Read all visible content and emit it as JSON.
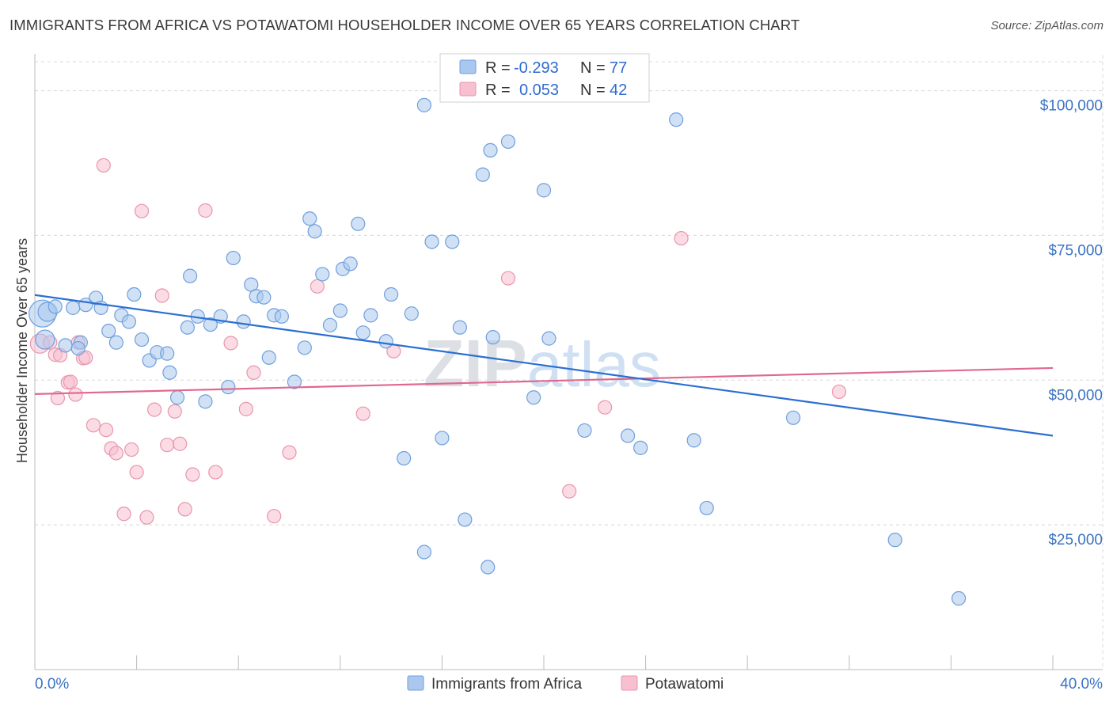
{
  "title": "IMMIGRANTS FROM AFRICA VS POTAWATOMI HOUSEHOLDER INCOME OVER 65 YEARS CORRELATION CHART",
  "source": "Source: ZipAtlas.com",
  "watermark": "ZIPatlas",
  "colors": {
    "blue_fill": "#aac8ef",
    "blue_stroke": "#6f9fdc",
    "blue_line": "#2a6fd1",
    "pink_fill": "#f7bfd0",
    "pink_stroke": "#e895ae",
    "pink_line": "#e06890",
    "tick_text": "#3b73c4",
    "grid": "#d8d8d8"
  },
  "legend": {
    "r_label": "R =",
    "n_label": "N =",
    "entries": [
      {
        "name": "Immigrants from Africa",
        "r": "-0.293",
        "n": "77"
      },
      {
        "name": "Potawatomi",
        "r": "0.053",
        "n": "42"
      }
    ]
  },
  "chart_data": {
    "type": "scatter",
    "title": "IMMIGRANTS FROM AFRICA VS POTAWATOMI HOUSEHOLDER INCOME OVER 65 YEARS CORRELATION CHART",
    "xlabel": "",
    "ylabel": "Householder Income Over 65 years",
    "xlim": [
      0,
      40
    ],
    "ylim": [
      0,
      105000
    ],
    "x_tick_labels": [
      {
        "value": 0,
        "label": "0.0%"
      },
      {
        "value": 40,
        "label": "40.0%"
      }
    ],
    "y_ticks": [
      {
        "value": 25000,
        "label": "$25,000"
      },
      {
        "value": 50000,
        "label": "$50,000"
      },
      {
        "value": 75000,
        "label": "$75,000"
      },
      {
        "value": 100000,
        "label": "$100,000"
      }
    ],
    "series": [
      {
        "name": "Immigrants from Africa",
        "trend": {
          "x": [
            0,
            40
          ],
          "y": [
            64700,
            40400
          ]
        },
        "points": [
          [
            0.3,
            61500,
            3
          ],
          [
            0.5,
            61800,
            2
          ],
          [
            0.8,
            62700,
            1
          ],
          [
            1.5,
            62500,
            1
          ],
          [
            1.8,
            56500,
            1
          ],
          [
            1.7,
            55500,
            1
          ],
          [
            2.4,
            64200,
            1
          ],
          [
            2.6,
            62500,
            1
          ],
          [
            2.9,
            58500,
            1
          ],
          [
            3.2,
            56500,
            1
          ],
          [
            3.4,
            61200,
            1
          ],
          [
            3.7,
            60100,
            1
          ],
          [
            3.9,
            64800,
            1
          ],
          [
            4.2,
            57000,
            1
          ],
          [
            4.5,
            53400,
            1
          ],
          [
            4.8,
            54800,
            1
          ],
          [
            5.2,
            54600,
            1
          ],
          [
            5.3,
            51300,
            1
          ],
          [
            5.6,
            47000,
            1
          ],
          [
            6.0,
            59100,
            1
          ],
          [
            6.1,
            68000,
            1
          ],
          [
            6.4,
            61000,
            1
          ],
          [
            6.7,
            46300,
            1
          ],
          [
            6.9,
            59600,
            1
          ],
          [
            7.3,
            61000,
            1
          ],
          [
            7.6,
            48800,
            1
          ],
          [
            7.8,
            71100,
            1
          ],
          [
            8.2,
            60100,
            1
          ],
          [
            8.5,
            66500,
            1
          ],
          [
            8.7,
            64500,
            1
          ],
          [
            9.0,
            64300,
            1
          ],
          [
            9.2,
            53900,
            1
          ],
          [
            9.4,
            61200,
            1
          ],
          [
            9.7,
            61000,
            1
          ],
          [
            10.2,
            49700,
            1
          ],
          [
            10.6,
            55600,
            1
          ],
          [
            10.8,
            77900,
            1
          ],
          [
            11.0,
            75700,
            1
          ],
          [
            11.3,
            68300,
            1
          ],
          [
            11.6,
            59500,
            1
          ],
          [
            12.0,
            62000,
            1
          ],
          [
            12.1,
            69200,
            1
          ],
          [
            12.4,
            70100,
            1
          ],
          [
            12.7,
            77000,
            1
          ],
          [
            12.9,
            58200,
            1
          ],
          [
            13.2,
            61200,
            1
          ],
          [
            13.8,
            56700,
            1
          ],
          [
            14.0,
            64800,
            1
          ],
          [
            14.5,
            36500,
            1
          ],
          [
            14.8,
            61500,
            1
          ],
          [
            15.3,
            97500,
            1
          ],
          [
            15.6,
            73900,
            1
          ],
          [
            15.3,
            20300,
            1
          ],
          [
            16.0,
            40000,
            1
          ],
          [
            16.4,
            73900,
            1
          ],
          [
            16.7,
            59100,
            1
          ],
          [
            16.9,
            25900,
            1
          ],
          [
            17.6,
            85500,
            1
          ],
          [
            17.9,
            89700,
            1
          ],
          [
            17.8,
            17700,
            1
          ],
          [
            18.0,
            57400,
            1
          ],
          [
            18.6,
            91200,
            1
          ],
          [
            19.6,
            47000,
            1
          ],
          [
            20.0,
            82800,
            1
          ],
          [
            20.2,
            57200,
            1
          ],
          [
            21.6,
            41300,
            1
          ],
          [
            23.3,
            40400,
            1
          ],
          [
            23.8,
            38300,
            1
          ],
          [
            25.2,
            95000,
            1
          ],
          [
            25.9,
            39600,
            1
          ],
          [
            26.4,
            27900,
            1
          ],
          [
            29.8,
            43500,
            1
          ],
          [
            33.8,
            22400,
            1
          ],
          [
            36.3,
            12300,
            1
          ],
          [
            0.4,
            57000,
            2
          ],
          [
            1.2,
            56000,
            1
          ],
          [
            2.0,
            63000,
            1
          ]
        ]
      },
      {
        "name": "Potawatomi",
        "trend": {
          "x": [
            0,
            40
          ],
          "y": [
            47600,
            52100
          ]
        },
        "points": [
          [
            0.2,
            56300,
            2
          ],
          [
            0.6,
            56500,
            1
          ],
          [
            0.8,
            54400,
            1
          ],
          [
            0.9,
            46900,
            1
          ],
          [
            1.0,
            54300,
            1
          ],
          [
            1.3,
            49600,
            1
          ],
          [
            1.4,
            49700,
            1
          ],
          [
            1.6,
            47500,
            1
          ],
          [
            1.7,
            56500,
            1
          ],
          [
            1.9,
            53800,
            1
          ],
          [
            2.0,
            53900,
            1
          ],
          [
            2.3,
            42200,
            1
          ],
          [
            2.7,
            87100,
            1
          ],
          [
            2.8,
            41400,
            1
          ],
          [
            3.0,
            38200,
            1
          ],
          [
            3.2,
            37400,
            1
          ],
          [
            3.5,
            26900,
            1
          ],
          [
            3.8,
            38000,
            1
          ],
          [
            4.0,
            34100,
            1
          ],
          [
            4.2,
            79200,
            1
          ],
          [
            4.4,
            26300,
            1
          ],
          [
            4.7,
            44900,
            1
          ],
          [
            5.0,
            64600,
            1
          ],
          [
            5.2,
            38800,
            1
          ],
          [
            5.5,
            44600,
            1
          ],
          [
            5.7,
            39000,
            1
          ],
          [
            5.9,
            27700,
            1
          ],
          [
            6.2,
            33700,
            1
          ],
          [
            6.7,
            79300,
            1
          ],
          [
            7.1,
            34100,
            1
          ],
          [
            7.7,
            56400,
            1
          ],
          [
            8.3,
            45000,
            1
          ],
          [
            8.6,
            51300,
            1
          ],
          [
            9.4,
            26500,
            1
          ],
          [
            10.0,
            37500,
            1
          ],
          [
            11.1,
            66200,
            1
          ],
          [
            12.9,
            44200,
            1
          ],
          [
            14.1,
            55000,
            1
          ],
          [
            18.6,
            67600,
            1
          ],
          [
            21.0,
            30800,
            1
          ],
          [
            22.4,
            45300,
            1
          ],
          [
            25.4,
            74500,
            1
          ],
          [
            31.6,
            48000,
            1
          ]
        ]
      }
    ]
  }
}
